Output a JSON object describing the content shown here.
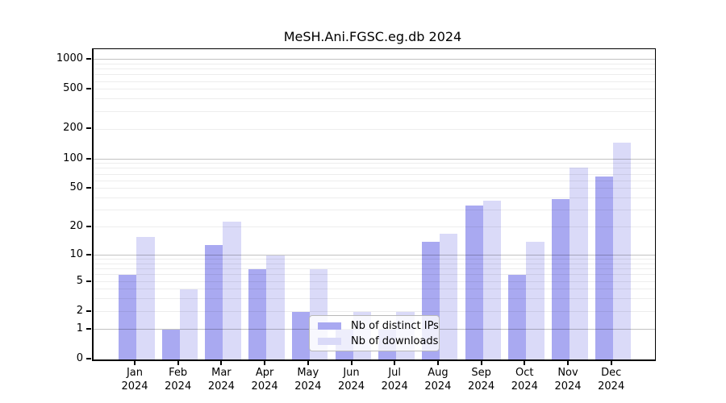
{
  "chart_data": {
    "type": "bar",
    "title": "MeSH.Ani.FGSC.eg.db 2024",
    "categories": [
      "Jan 2024",
      "Feb 2024",
      "Mar 2024",
      "Apr 2024",
      "May 2024",
      "Jun 2024",
      "Jul 2024",
      "Aug 2024",
      "Sep 2024",
      "Oct 2024",
      "Nov 2024",
      "Dec 2024"
    ],
    "series": [
      {
        "name": "Nb of distinct IPs",
        "color": "#a9a9f1",
        "values": [
          6,
          1,
          13,
          7,
          2,
          1,
          1,
          14,
          34,
          6,
          39,
          67
        ]
      },
      {
        "name": "Nb of downloads",
        "color": "#dadaf8",
        "values": [
          16,
          4,
          23,
          10,
          7,
          2,
          2,
          17,
          38,
          14,
          83,
          147
        ]
      }
    ],
    "xlabel": "",
    "ylabel": "",
    "y_axis": {
      "scale": "log10(1+x)",
      "tick_values": [
        0,
        1,
        2,
        5,
        10,
        20,
        50,
        100,
        200,
        500,
        1000
      ],
      "range_top_value": 1275,
      "major_gridlines": [
        1,
        10,
        100,
        1000
      ]
    },
    "grid": "horizontal log gridlines drawn over bars",
    "legend_position": "inside-bottom-center"
  },
  "legend": {
    "items": [
      {
        "label": "Nb of distinct IPs",
        "color": "#a9a9f1"
      },
      {
        "label": "Nb of downloads",
        "color": "#dadaf8"
      }
    ]
  },
  "colors": {
    "background": "#ffffff",
    "axis": "#000000",
    "bar_ips": "#a9a9f1",
    "bar_downloads": "#dadaf8",
    "grid_major": "#c2c2c2",
    "grid_minor": "#ededed",
    "legend_border": "#b9b9b9"
  }
}
